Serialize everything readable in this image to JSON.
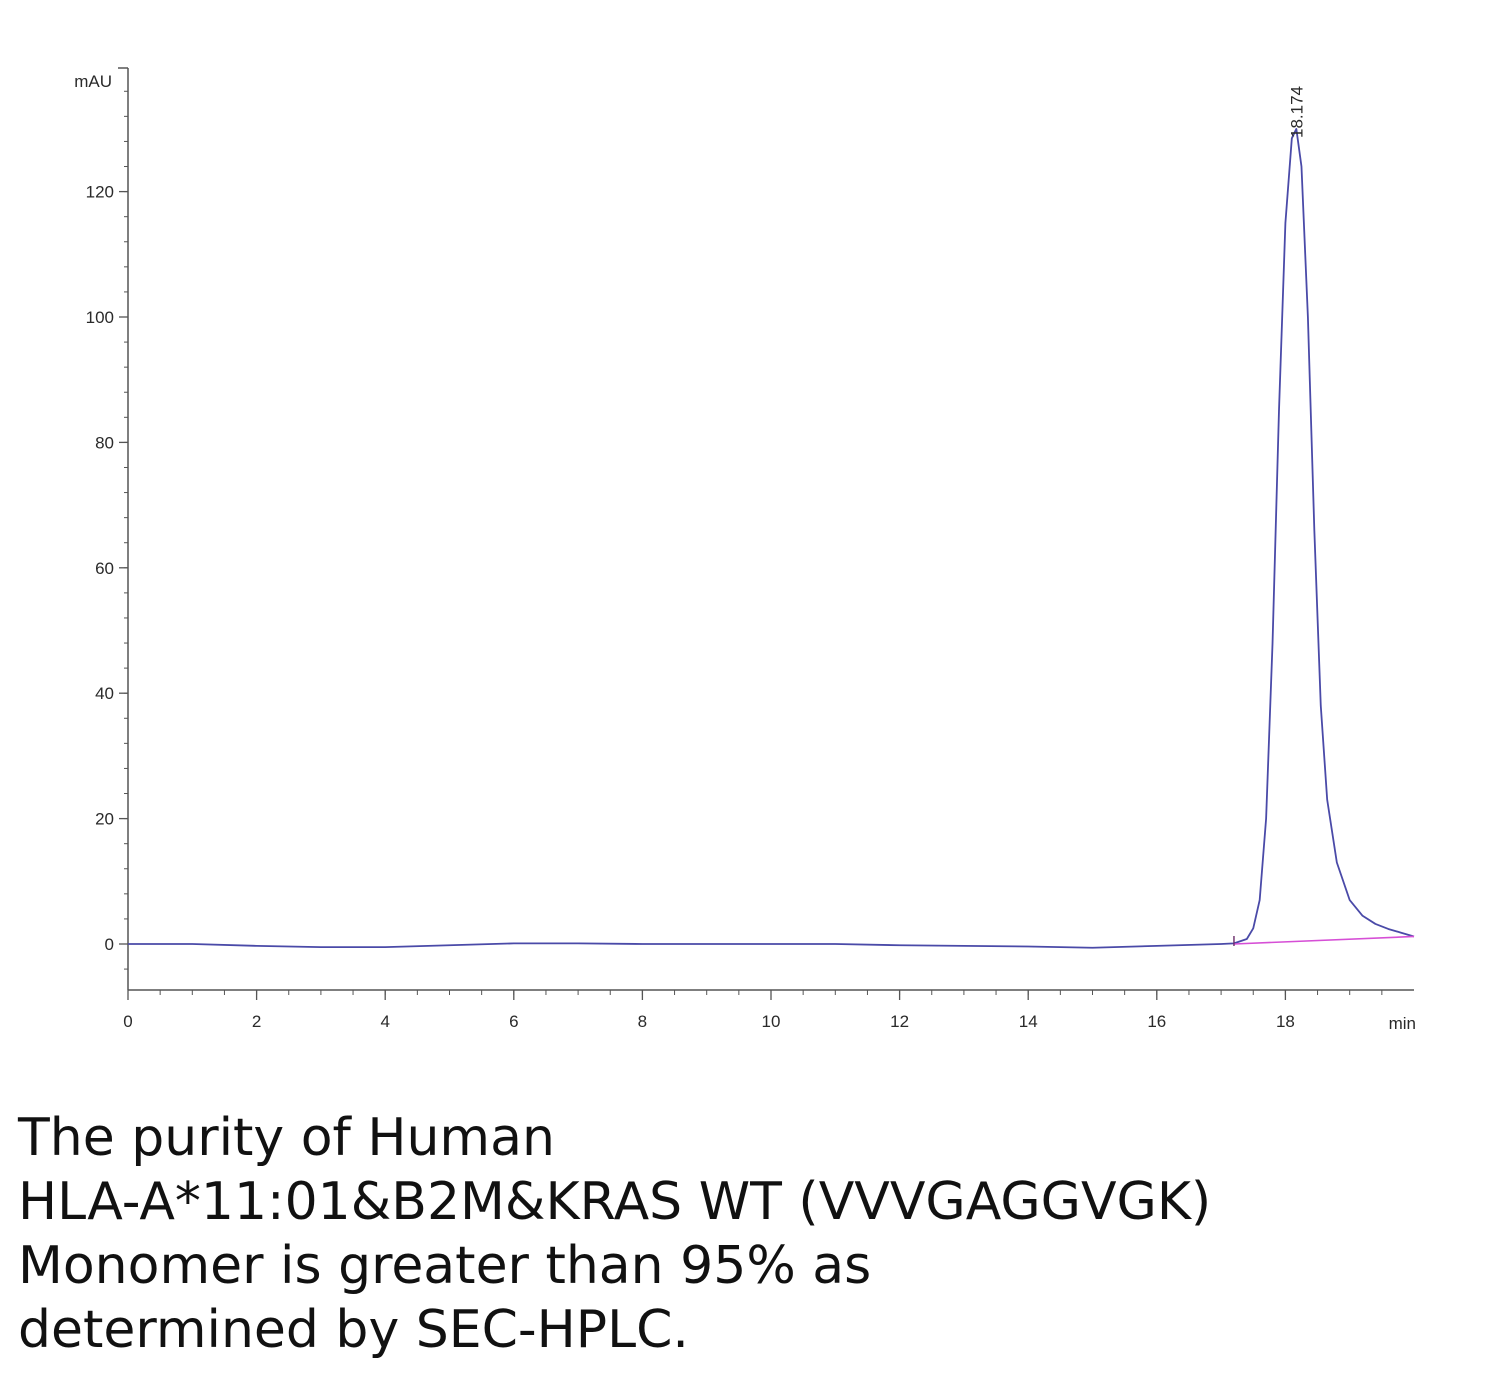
{
  "chart_data": {
    "type": "line",
    "ylabel": "mAU",
    "xlabel": "min",
    "xlim": [
      0,
      20
    ],
    "ylim": [
      -7,
      140
    ],
    "x_ticks": [
      0,
      2,
      4,
      6,
      8,
      10,
      12,
      14,
      16,
      18
    ],
    "x_tick_labels": [
      "0",
      "2",
      "4",
      "6",
      "8",
      "10",
      "12",
      "14",
      "16",
      "18"
    ],
    "y_ticks": [
      0,
      20,
      40,
      60,
      80,
      100,
      120
    ],
    "y_tick_labels": [
      "0",
      "20",
      "40",
      "60",
      "80",
      "100",
      "120"
    ],
    "grid": false,
    "series": [
      {
        "color": "#4a4aa8",
        "x": [
          0,
          1,
          2,
          3,
          4,
          5,
          6,
          7,
          8,
          9,
          10,
          11,
          12,
          13,
          14,
          15,
          16,
          17,
          17.2,
          17.4,
          17.5,
          17.6,
          17.7,
          17.8,
          17.9,
          18.0,
          18.1,
          18.17,
          18.25,
          18.35,
          18.45,
          18.55,
          18.65,
          18.8,
          19.0,
          19.2,
          19.4,
          19.6,
          19.8,
          20.0
        ],
        "y": [
          0,
          0,
          -0.3,
          -0.5,
          -0.5,
          -0.2,
          0.1,
          0.1,
          0,
          0,
          0,
          0,
          -0.2,
          -0.3,
          -0.4,
          -0.6,
          -0.3,
          0,
          0.1,
          0.8,
          2.5,
          7,
          20,
          48,
          85,
          115,
          128.5,
          130,
          124,
          100,
          66,
          38,
          23,
          13,
          7,
          4.5,
          3.2,
          2.4,
          1.8,
          1.2
        ]
      },
      {
        "color": "#d64fd6",
        "x": [
          17.2,
          20.0
        ],
        "y": [
          0,
          1.2
        ]
      }
    ],
    "annotations": [
      {
        "text": "18.174",
        "x": 18.174,
        "y": 130
      }
    ]
  },
  "caption": {
    "lines": [
      "The purity of Human",
      "HLA-A*11:01&B2M&KRAS WT (VVVGAGGVGK)",
      "Monomer is greater than 95% as",
      "determined by SEC-HPLC."
    ]
  }
}
